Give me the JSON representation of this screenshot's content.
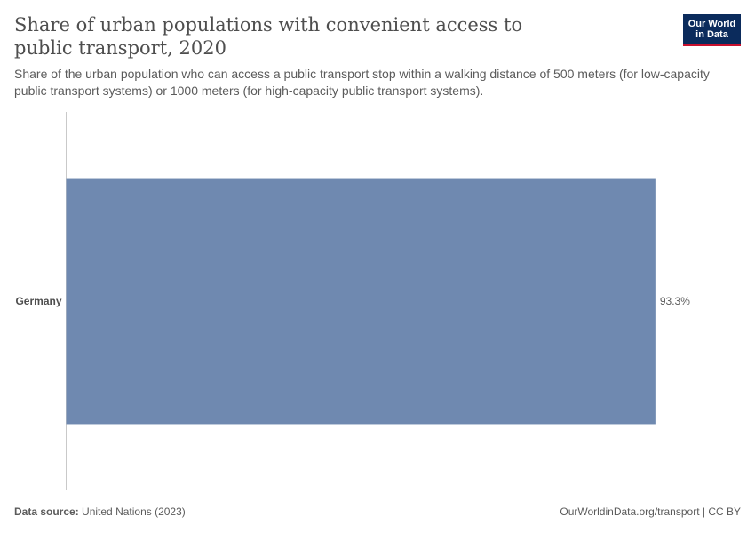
{
  "header": {
    "title": "Share of urban populations with convenient access to public transport, 2020",
    "subtitle": "Share of the urban population who can access a public transport stop within a walking distance of 500 meters (for low-capacity public transport systems) or 1000 meters (for high-capacity public transport systems).",
    "logo_line1": "Our World",
    "logo_line2": "in Data"
  },
  "footer": {
    "source_label": "Data source:",
    "source_value": "United Nations (2023)",
    "url": "OurWorldinData.org/transport | CC BY"
  },
  "chart_data": {
    "type": "bar",
    "orientation": "horizontal",
    "categories": [
      "Germany"
    ],
    "values": [
      93.3
    ],
    "value_labels": [
      "93.3%"
    ],
    "xlim": [
      0,
      100
    ],
    "unit": "%",
    "bar_color": "#6f89b0",
    "grid": false
  }
}
